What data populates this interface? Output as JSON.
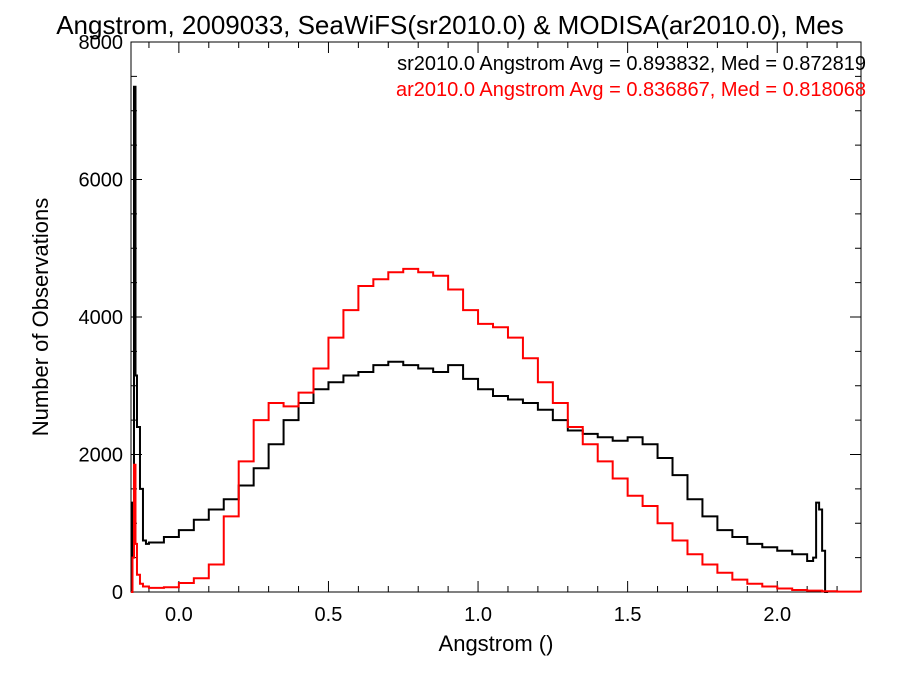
{
  "chart_data": {
    "type": "line",
    "step": true,
    "title": "Angstrom, 2009033, SeaWiFS(sr2010.0) & MODISA(ar2010.0), Mes",
    "xlabel": "Angstrom ()",
    "ylabel": "Number of Observations",
    "xlim": [
      -0.16,
      2.28
    ],
    "ylim": [
      0,
      8000
    ],
    "x_ticks": [
      "0.0",
      "0.5",
      "1.0",
      "1.5",
      "2.0"
    ],
    "y_ticks": [
      "0",
      "2000",
      "4000",
      "6000",
      "8000"
    ],
    "x_tick_values": [
      0,
      0.5,
      1.0,
      1.5,
      2.0
    ],
    "y_tick_values": [
      0,
      2000,
      4000,
      6000,
      8000
    ],
    "legend_position": "top-right",
    "series": [
      {
        "label": "sr2010.0 Angstrom Avg = 0.893832, Med = 0.872819",
        "color": "#000000",
        "x": [
          -0.16,
          -0.155,
          -0.15,
          -0.145,
          -0.14,
          -0.13,
          -0.12,
          -0.11,
          -0.1,
          -0.05,
          0.0,
          0.05,
          0.1,
          0.15,
          0.2,
          0.25,
          0.3,
          0.35,
          0.4,
          0.45,
          0.5,
          0.55,
          0.6,
          0.65,
          0.7,
          0.75,
          0.8,
          0.85,
          0.9,
          0.95,
          1.0,
          1.05,
          1.1,
          1.15,
          1.2,
          1.25,
          1.3,
          1.35,
          1.4,
          1.45,
          1.5,
          1.55,
          1.6,
          1.65,
          1.7,
          1.75,
          1.8,
          1.85,
          1.9,
          1.95,
          2.0,
          2.05,
          2.1,
          2.12,
          2.13,
          2.14,
          2.15,
          2.16,
          2.17
        ],
        "y": [
          0,
          1300,
          7350,
          3150,
          2400,
          1500,
          750,
          700,
          720,
          800,
          900,
          1050,
          1200,
          1350,
          1550,
          1800,
          2150,
          2500,
          2750,
          2950,
          3050,
          3150,
          3200,
          3300,
          3350,
          3300,
          3250,
          3200,
          3300,
          3100,
          2950,
          2850,
          2800,
          2750,
          2650,
          2500,
          2350,
          2300,
          2250,
          2200,
          2250,
          2150,
          1950,
          1700,
          1350,
          1100,
          900,
          800,
          700,
          650,
          600,
          550,
          450,
          500,
          1300,
          1200,
          600,
          0,
          0
        ]
      },
      {
        "label": "ar2010.0 Angstrom Avg = 0.836867, Med = 0.818068",
        "color": "#ff0000",
        "x": [
          -0.16,
          -0.155,
          -0.15,
          -0.145,
          -0.14,
          -0.13,
          -0.12,
          -0.1,
          -0.05,
          0.0,
          0.05,
          0.1,
          0.15,
          0.2,
          0.25,
          0.3,
          0.35,
          0.4,
          0.45,
          0.5,
          0.55,
          0.6,
          0.65,
          0.7,
          0.75,
          0.8,
          0.85,
          0.9,
          0.95,
          1.0,
          1.05,
          1.1,
          1.15,
          1.2,
          1.25,
          1.3,
          1.35,
          1.4,
          1.45,
          1.5,
          1.55,
          1.6,
          1.65,
          1.7,
          1.75,
          1.8,
          1.85,
          1.9,
          1.95,
          2.0,
          2.05,
          2.1,
          2.15,
          2.2,
          2.28
        ],
        "y": [
          0,
          500,
          1850,
          700,
          250,
          120,
          80,
          60,
          70,
          130,
          200,
          400,
          1100,
          1900,
          2500,
          2750,
          2700,
          2900,
          3250,
          3700,
          4100,
          4450,
          4550,
          4650,
          4700,
          4650,
          4600,
          4400,
          4100,
          3900,
          3850,
          3700,
          3400,
          3050,
          2750,
          2400,
          2150,
          1900,
          1650,
          1400,
          1250,
          1000,
          750,
          550,
          400,
          280,
          180,
          120,
          80,
          50,
          30,
          20,
          10,
          5,
          0
        ]
      }
    ]
  }
}
